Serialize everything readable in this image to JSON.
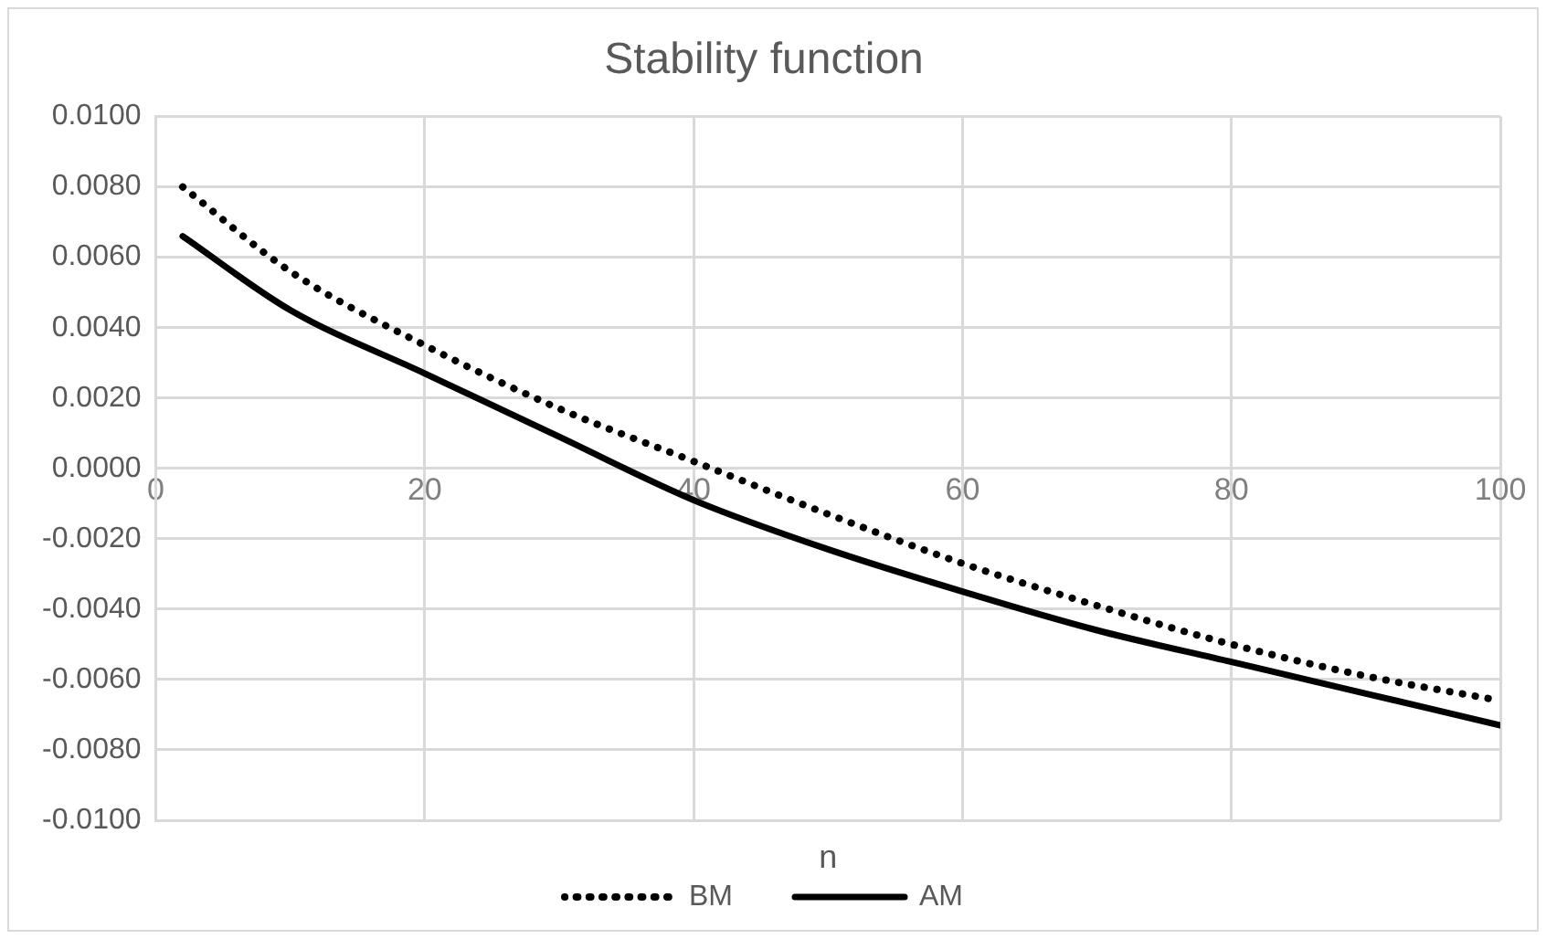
{
  "chart_data": {
    "type": "line",
    "title": "Stability function",
    "xlabel": "n",
    "x": [
      2,
      10,
      20,
      30,
      40,
      50,
      60,
      70,
      80,
      90,
      100
    ],
    "series": [
      {
        "name": "BM",
        "color": "#000000",
        "line_style": "dotted",
        "values": [
          0.008,
          0.0056,
          0.0035,
          0.0017,
          0.0002,
          -0.0013,
          -0.0027,
          -0.0039,
          -0.005,
          -0.0059,
          -0.0066
        ]
      },
      {
        "name": "AM",
        "color": "#000000",
        "line_style": "solid",
        "values": [
          0.0066,
          0.0045,
          0.0027,
          0.0009,
          -0.0009,
          -0.0023,
          -0.0035,
          -0.0046,
          -0.0055,
          -0.0064,
          -0.0073
        ]
      }
    ],
    "xlim": [
      0,
      100
    ],
    "xticks": [
      0,
      20,
      40,
      60,
      80,
      100
    ],
    "ylim": [
      -0.01,
      0.01
    ],
    "yticks": [
      {
        "value": -0.01,
        "label": "-0.0100"
      },
      {
        "value": -0.008,
        "label": "-0.0080"
      },
      {
        "value": -0.006,
        "label": "-0.0060"
      },
      {
        "value": -0.004,
        "label": "-0.0040"
      },
      {
        "value": -0.002,
        "label": "-0.0020"
      },
      {
        "value": 0,
        "label": "0.0000"
      },
      {
        "value": 0.002,
        "label": "0.0020"
      },
      {
        "value": 0.004,
        "label": "0.0040"
      },
      {
        "value": 0.006,
        "label": "0.0060"
      },
      {
        "value": 0.008,
        "label": "0.0080"
      },
      {
        "value": 0.01,
        "label": "0.0100"
      }
    ],
    "grid": true,
    "legend": "bottom",
    "marker": "none"
  }
}
